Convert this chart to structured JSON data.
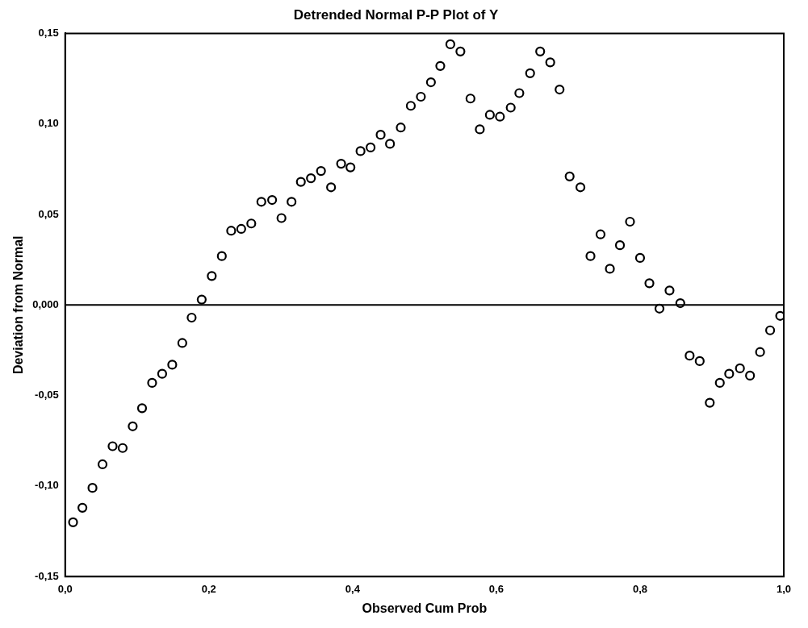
{
  "chart_data": {
    "type": "scatter",
    "title": "Detrended Normal P-P Plot of Y",
    "xlabel": "Observed Cum Prob",
    "ylabel": "Deviation from Normal",
    "xlim": [
      0,
      1
    ],
    "ylim": [
      -0.15,
      0.15
    ],
    "xticks": [
      {
        "value": 0,
        "label": "0,0"
      },
      {
        "value": 0.2,
        "label": "0,2"
      },
      {
        "value": 0.4,
        "label": "0,4"
      },
      {
        "value": 0.6,
        "label": "0,6"
      },
      {
        "value": 0.8,
        "label": "0,8"
      },
      {
        "value": 1,
        "label": "1,0"
      }
    ],
    "yticks": [
      {
        "value": -0.15,
        "label": "-0,15"
      },
      {
        "value": -0.1,
        "label": "-0,10"
      },
      {
        "value": -0.05,
        "label": "-0,05"
      },
      {
        "value": 0,
        "label": "0,000"
      },
      {
        "value": 0.05,
        "label": "0,05"
      },
      {
        "value": 0.1,
        "label": "0,10"
      },
      {
        "value": 0.15,
        "label": "0,15"
      }
    ],
    "grid": false,
    "legend": false,
    "marker": "circle",
    "ref_lines": [
      {
        "axis": "y",
        "value": 0,
        "color": "#000000"
      }
    ],
    "series": [
      {
        "color": "#000000",
        "x": [
          0.011,
          0.024,
          0.038,
          0.052,
          0.066,
          0.08,
          0.094,
          0.107,
          0.121,
          0.135,
          0.149,
          0.163,
          0.176,
          0.19,
          0.204,
          0.218,
          0.231,
          0.245,
          0.259,
          0.273,
          0.288,
          0.301,
          0.315,
          0.328,
          0.342,
          0.356,
          0.37,
          0.384,
          0.397,
          0.411,
          0.425,
          0.439,
          0.452,
          0.467,
          0.481,
          0.495,
          0.509,
          0.522,
          0.536,
          0.55,
          0.564,
          0.577,
          0.591,
          0.605,
          0.62,
          0.632,
          0.647,
          0.661,
          0.675,
          0.688,
          0.702,
          0.717,
          0.731,
          0.745,
          0.758,
          0.772,
          0.786,
          0.8,
          0.813,
          0.827,
          0.841,
          0.856,
          0.869,
          0.883,
          0.897,
          0.911,
          0.924,
          0.939,
          0.953,
          0.967,
          0.981,
          0.995
        ],
        "values": [
          -0.12,
          -0.112,
          -0.101,
          -0.088,
          -0.078,
          -0.079,
          -0.067,
          -0.057,
          -0.043,
          -0.038,
          -0.033,
          -0.021,
          -0.007,
          0.003,
          0.016,
          0.027,
          0.041,
          0.042,
          0.045,
          0.057,
          0.058,
          0.048,
          0.057,
          0.068,
          0.07,
          0.074,
          0.065,
          0.078,
          0.076,
          0.085,
          0.087,
          0.094,
          0.089,
          0.098,
          0.11,
          0.115,
          0.123,
          0.132,
          0.144,
          0.14,
          0.114,
          0.097,
          0.105,
          0.104,
          0.109,
          0.117,
          0.128,
          0.14,
          0.134,
          0.119,
          0.071,
          0.065,
          0.027,
          0.039,
          0.02,
          0.033,
          0.046,
          0.026,
          0.012,
          -0.002,
          0.008,
          0.001,
          -0.028,
          -0.031,
          -0.054,
          -0.043,
          -0.038,
          -0.035,
          -0.039,
          -0.026,
          -0.014,
          -0.006
        ]
      }
    ]
  }
}
